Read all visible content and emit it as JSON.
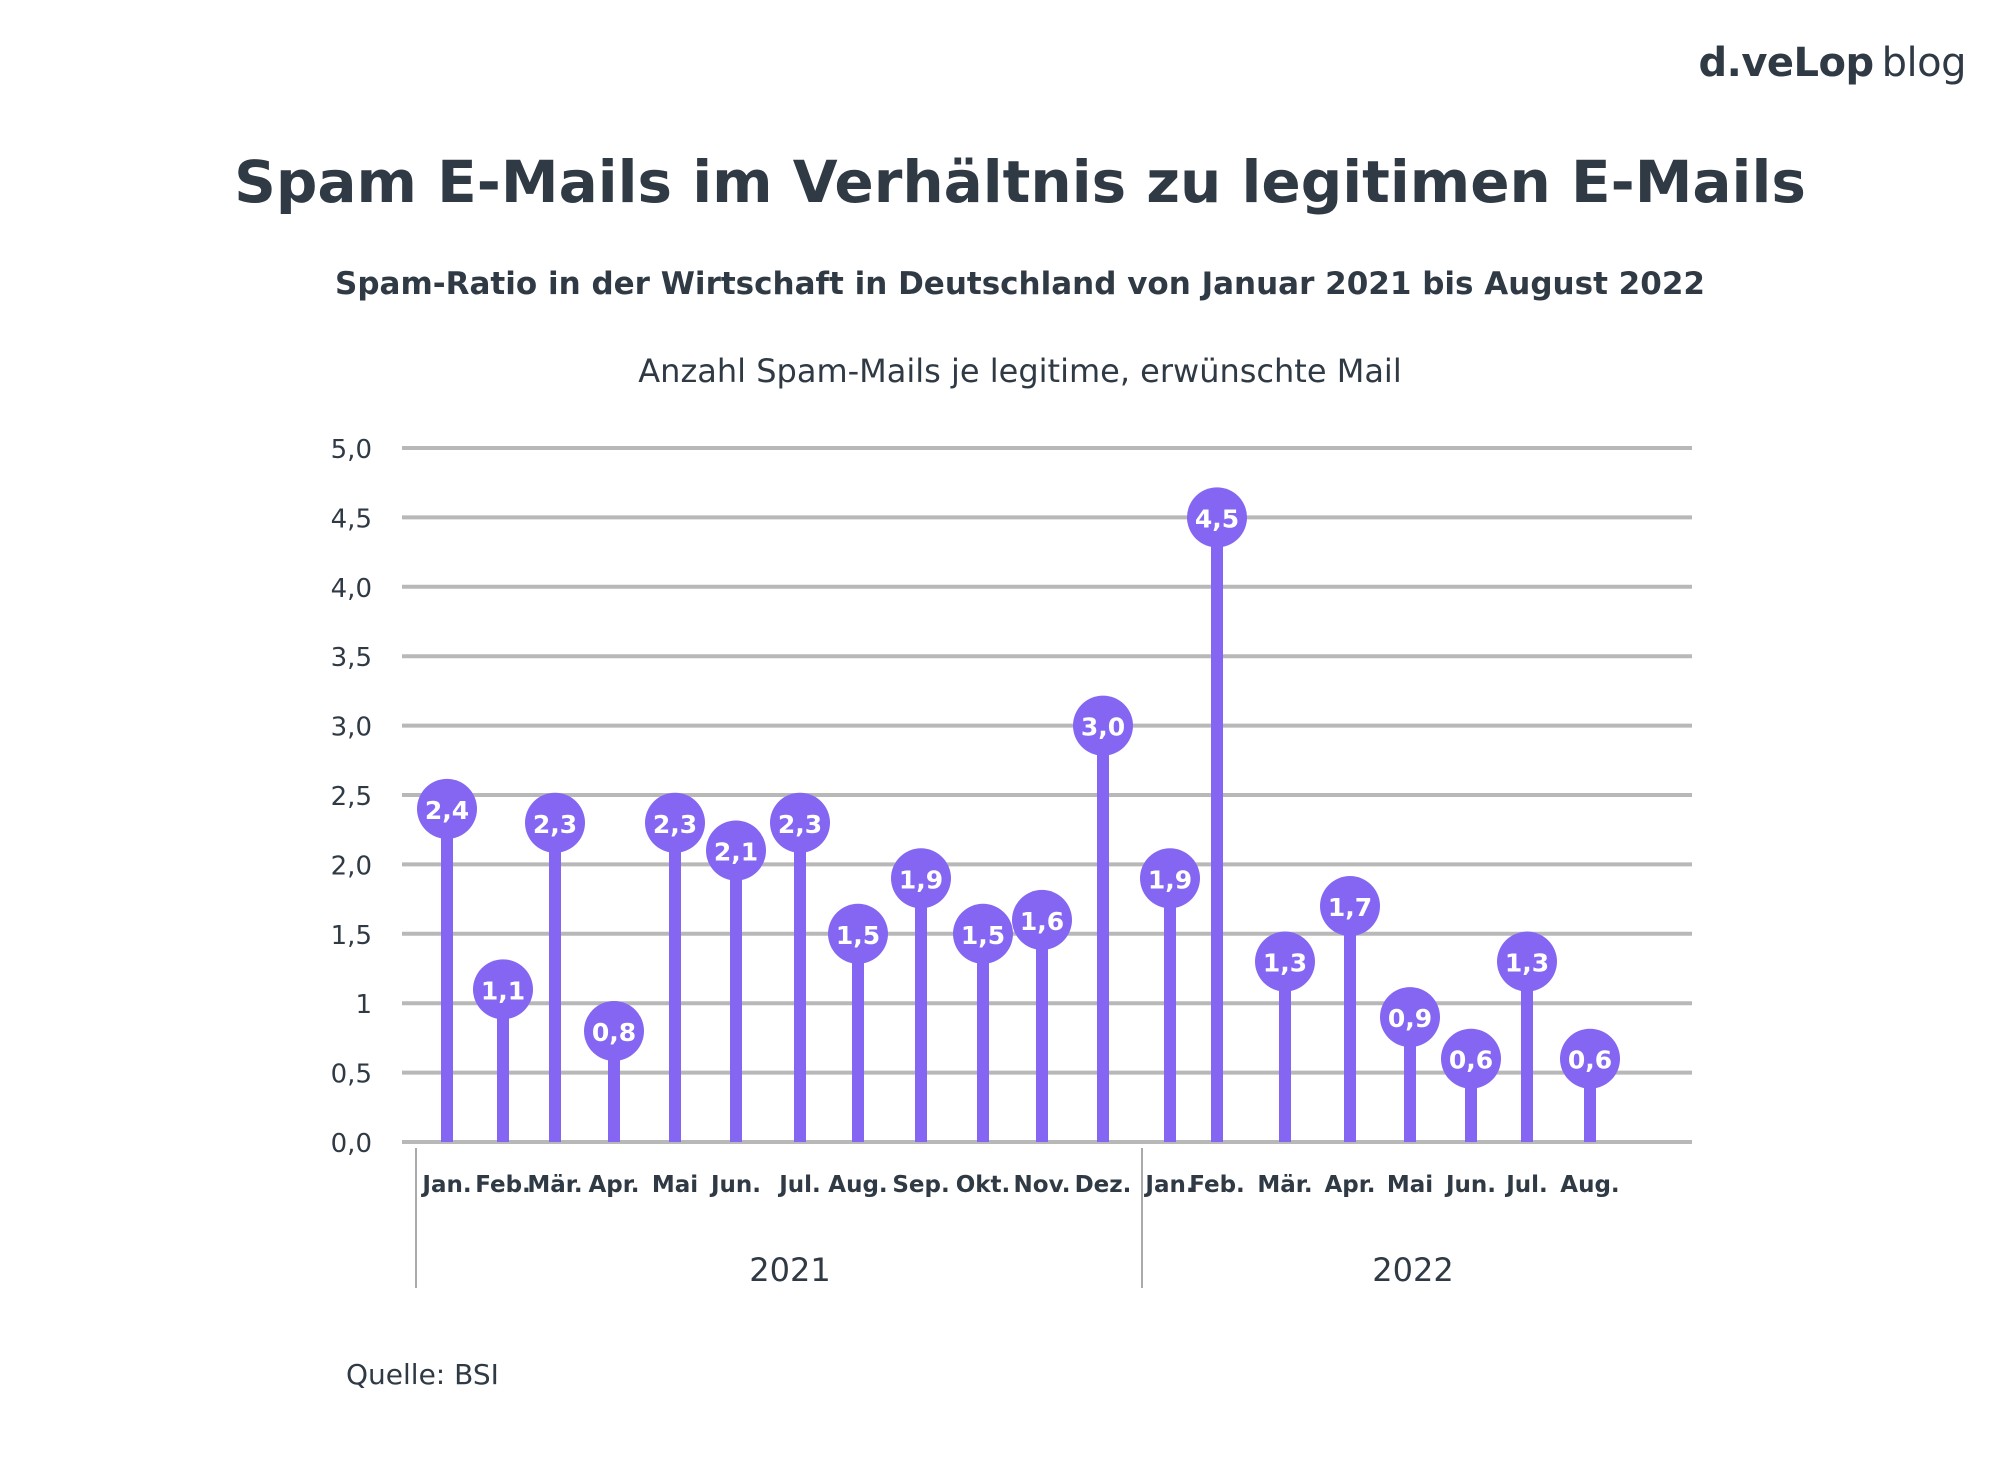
{
  "logo": {
    "brand": "d.veLop",
    "suffix": "blog"
  },
  "header": {
    "title": "Spam E-Mails im Verhältnis zu legitimen E-Mails",
    "subtitle": "Spam-Ratio in der Wirtschaft in Deutschland von Januar 2021 bis August 2022",
    "ylabel": "Anzahl Spam-Mails je legitime, erwünschte Mail"
  },
  "source": "Quelle: BSI",
  "colors": {
    "accent": "#8466f2",
    "grid": "#b8b8b8",
    "text": "#2f3a45"
  },
  "chart_data": {
    "type": "lollipop-bar",
    "title": "Spam E-Mails im Verhältnis zu legitimen E-Mails",
    "subtitle": "Spam-Ratio in der Wirtschaft in Deutschland von Januar 2021 bis August 2022",
    "ylabel": "Anzahl Spam-Mails je legitime, erwünschte Mail",
    "ylim": [
      0,
      5
    ],
    "yticks": [
      "0,0",
      "0,5",
      "1",
      "1,5",
      "2,0",
      "2,5",
      "3,0",
      "3,5",
      "4,0",
      "4,5",
      "5,0"
    ],
    "grid": true,
    "categories": [
      "Jan.",
      "Feb.",
      "Mär.",
      "Apr.",
      "Mai",
      "Jun.",
      "Jul.",
      "Aug.",
      "Sep.",
      "Okt.",
      "Nov.",
      "Dez.",
      "Jan.",
      "Feb.",
      "Mär.",
      "Apr.",
      "Mai",
      "Jun.",
      "Jul.",
      "Aug."
    ],
    "groups": [
      {
        "label": "2021",
        "count": 12
      },
      {
        "label": "2022",
        "count": 8
      }
    ],
    "values": [
      2.4,
      1.1,
      2.3,
      0.8,
      2.3,
      2.1,
      2.3,
      1.5,
      1.9,
      1.5,
      1.6,
      3.0,
      1.9,
      4.5,
      1.3,
      1.7,
      0.9,
      0.6,
      1.3,
      0.6
    ],
    "labels": [
      "2,4",
      "1,1",
      "2,3",
      "0,8",
      "2,3",
      "2,1",
      "2,3",
      "1,5",
      "1,9",
      "1,5",
      "1,6",
      "3,0",
      "1,9",
      "4,5",
      "1,3",
      "1,7",
      "0,9",
      "0,6",
      "1,3",
      "0,6"
    ]
  }
}
